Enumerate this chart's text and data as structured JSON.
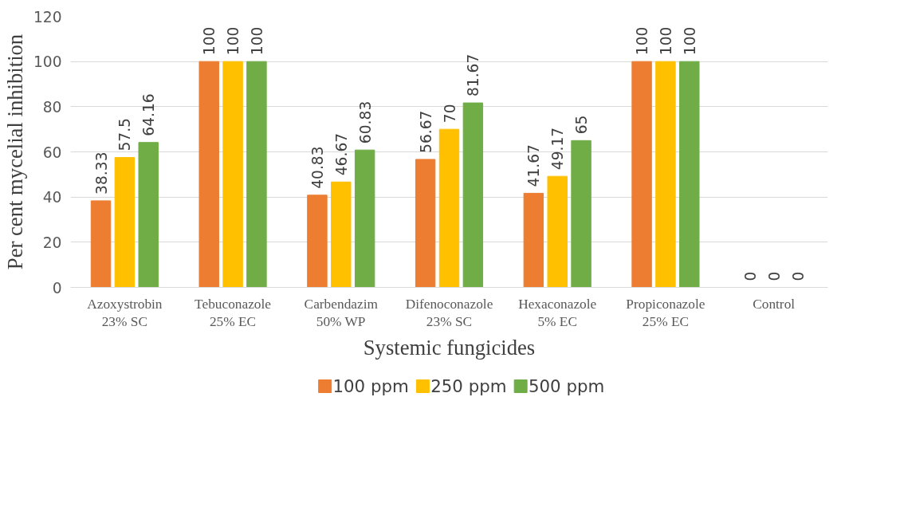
{
  "chart_data": {
    "type": "bar",
    "xlabel": "Systemic fungicides",
    "ylabel": "Per cent mycelial inhibition",
    "categories": [
      "Azoxystrobin\n23% SC",
      "Tebuconazole\n25% EC",
      "Carbendazim\n50% WP",
      "Difenoconazole\n23% SC",
      "Hexaconazole\n5% EC",
      "Propiconazole\n25% EC",
      "Control"
    ],
    "series": [
      {
        "name": "100 ppm",
        "color": "#ed7d31",
        "values": [
          38.33,
          100,
          40.83,
          56.67,
          41.67,
          100,
          0
        ]
      },
      {
        "name": "250 ppm",
        "color": "#ffc000",
        "values": [
          57.5,
          100,
          46.67,
          70,
          49.17,
          100,
          0
        ]
      },
      {
        "name": "500 ppm",
        "color": "#70ad47",
        "values": [
          64.16,
          100,
          60.83,
          81.67,
          65,
          100,
          0
        ]
      }
    ],
    "ylim": [
      0,
      120
    ],
    "yticks": [
      0,
      20,
      40,
      60,
      80,
      100,
      120
    ],
    "grid": "y",
    "legend": "bottom",
    "data_labels": true
  }
}
